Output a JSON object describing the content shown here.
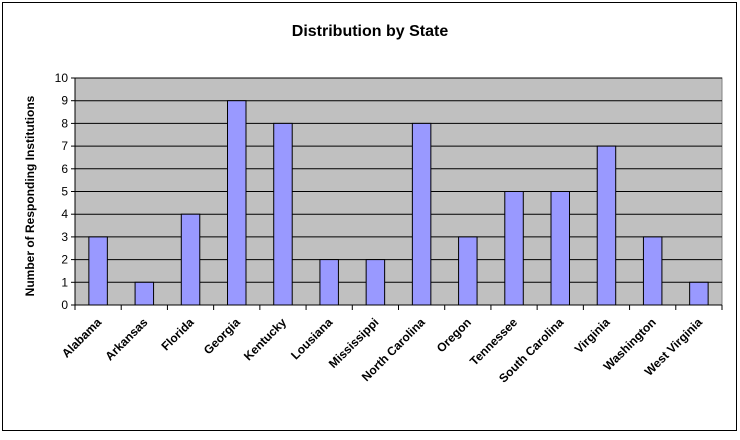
{
  "chart_data": {
    "type": "bar",
    "title": "Distribution by State",
    "xlabel": "",
    "ylabel": "Number of Responding Institutions",
    "categories": [
      "Alabama",
      "Arkansas",
      "Florida",
      "Georgia",
      "Kentucky",
      "Lousiana",
      "Mississippi",
      "North Carolina",
      "Oregon",
      "Tennessee",
      "South Carolina",
      "Virginia",
      "Washington",
      "West Virginia"
    ],
    "values": [
      3,
      1,
      4,
      9,
      8,
      2,
      2,
      8,
      3,
      5,
      5,
      7,
      3,
      1
    ],
    "ylim": [
      0,
      10
    ],
    "yticks": [
      "0",
      "1",
      "2",
      "3",
      "4",
      "5",
      "6",
      "7",
      "8",
      "9",
      "10"
    ],
    "grid": true,
    "legend": "none",
    "colors": {
      "bar_fill": "#9999ff",
      "bar_stroke": "#000000",
      "plot_background": "#c0c0c0",
      "gridline": "#000000",
      "page_background": "#ffffff"
    }
  }
}
